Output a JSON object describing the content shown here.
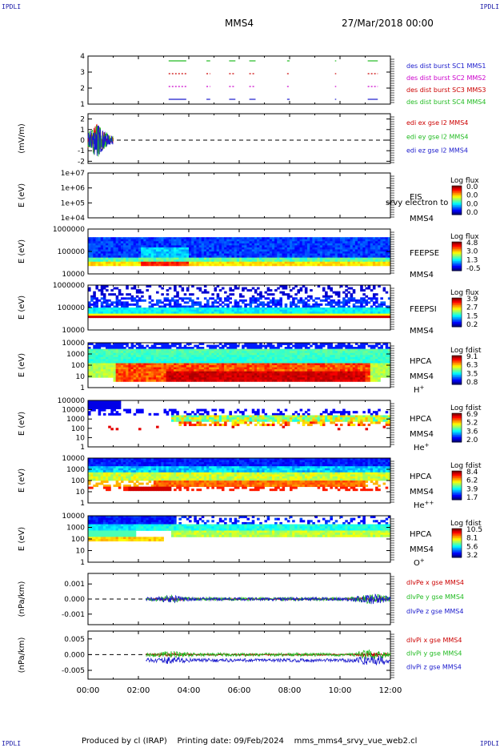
{
  "corner_label": "IPDLI",
  "header": {
    "spacecraft": "MMS4",
    "date": "27/Mar/2018 00:00"
  },
  "footer": {
    "credit": "Produced by cl (IRAP)",
    "printing": "Printing date: 09/Feb/2024",
    "file": "mms_mms4_srvy_vue_web2.cl"
  },
  "time_axis": {
    "ticks": [
      "00:00",
      "02:00",
      "04:00",
      "06:00",
      "08:00",
      "10:00",
      "12:00"
    ]
  },
  "chart_data": [
    {
      "type": "timeline",
      "title": "burst availability",
      "yticks": [
        "1",
        "2",
        "3",
        "4"
      ],
      "legend": [
        {
          "label": "des dist burst SC1 MMS1",
          "color": "#1a1acc"
        },
        {
          "label": "des dist burst SC2 MMS2",
          "color": "#cc00cc"
        },
        {
          "label": "des dist burst SC3 MMS3",
          "color": "#cc0000"
        },
        {
          "label": "des dist burst SC4 MMS4",
          "color": "#22bb22"
        }
      ]
    },
    {
      "type": "line",
      "ylabel": "(mV/m)",
      "yticks": [
        "2",
        "1",
        "0",
        "-1",
        "-2"
      ],
      "ylim": [
        -2.2,
        2.5
      ],
      "legend": [
        {
          "label": "edi ex gse l2 MMS4",
          "color": "#cc0000"
        },
        {
          "label": "edi ey gse l2 MMS4",
          "color": "#22bb22"
        },
        {
          "label": "edi ez gse l2 MMS4",
          "color": "#1a1acc"
        }
      ]
    },
    {
      "type": "heatmap",
      "ylabel": "E (eV)",
      "yticks": [
        "1e+07",
        "1e+06",
        "1e+05",
        "1e+04"
      ],
      "instrument": "EIS",
      "subtitle": "srvy electron to",
      "spacecraft": "MMS4",
      "cbar_title": "Log flux",
      "cbar_ticks": [
        "0.0",
        "0.0",
        "0.0",
        "0.0"
      ],
      "empty": true
    },
    {
      "type": "heatmap",
      "ylabel": "E (eV)",
      "yticks": [
        "1000000",
        "100000",
        "10000"
      ],
      "instrument": "FEEPSE",
      "spacecraft": "MMS4",
      "cbar_title": "Log flux",
      "cbar_ticks": [
        "4.8",
        "3.0",
        "1.3",
        "-0.5"
      ]
    },
    {
      "type": "heatmap",
      "ylabel": "E (eV)",
      "yticks": [
        "1000000",
        "100000",
        "10000"
      ],
      "instrument": "FEEPSI",
      "spacecraft": "MMS4",
      "cbar_title": "Log flux",
      "cbar_ticks": [
        "3.9",
        "2.7",
        "1.5",
        "0.2"
      ]
    },
    {
      "type": "heatmap",
      "ylabel": "E (eV)",
      "yticks": [
        "10000",
        "1000",
        "100",
        "10",
        "1"
      ],
      "instrument": "HPCA",
      "spacecraft": "MMS4",
      "species": "H+",
      "cbar_title": "Log fdist",
      "cbar_ticks": [
        "9.1",
        "6.3",
        "3.5",
        "0.8"
      ]
    },
    {
      "type": "heatmap",
      "ylabel": "E (eV)",
      "yticks": [
        "100000",
        "10000",
        "1000",
        "100",
        "10",
        "1"
      ],
      "instrument": "HPCA",
      "spacecraft": "MMS4",
      "species": "He+",
      "cbar_title": "Log fdist",
      "cbar_ticks": [
        "6.9",
        "5.2",
        "3.6",
        "2.0"
      ]
    },
    {
      "type": "heatmap",
      "ylabel": "E (eV)",
      "yticks": [
        "10000",
        "1000",
        "100",
        "10",
        "1"
      ],
      "instrument": "HPCA",
      "spacecraft": "MMS4",
      "species": "He++",
      "cbar_title": "Log fdist",
      "cbar_ticks": [
        "8.4",
        "6.2",
        "3.9",
        "1.7"
      ]
    },
    {
      "type": "heatmap",
      "ylabel": "E (eV)",
      "yticks": [
        "10000",
        "1000",
        "100",
        "10",
        "1"
      ],
      "instrument": "HPCA",
      "spacecraft": "MMS4",
      "species": "O+",
      "cbar_title": "Log fdist",
      "cbar_ticks": [
        "10.5",
        "8.1",
        "5.6",
        "3.2"
      ]
    },
    {
      "type": "line",
      "ylabel": "(nPa/km)",
      "yticks": [
        "0.001",
        "0.000",
        "-0.001"
      ],
      "ylim": [
        -0.0017,
        0.0017
      ],
      "legend": [
        {
          "label": "dlvPe x gse MMS4",
          "color": "#cc0000"
        },
        {
          "label": "dlvPe y gse MMS4",
          "color": "#22bb22"
        },
        {
          "label": "dlvPe z gse MMS4",
          "color": "#1a1acc"
        }
      ]
    },
    {
      "type": "line",
      "ylabel": "(nPa/km)",
      "yticks": [
        "0.005",
        "0.000",
        "-0.005"
      ],
      "ylim": [
        -0.0078,
        0.0075
      ],
      "legend": [
        {
          "label": "dlvPi x gse MMS4",
          "color": "#cc0000"
        },
        {
          "label": "dlvPi y gse MMS4",
          "color": "#22bb22"
        },
        {
          "label": "dlvPi z gse MMS4",
          "color": "#1a1acc"
        }
      ]
    }
  ]
}
